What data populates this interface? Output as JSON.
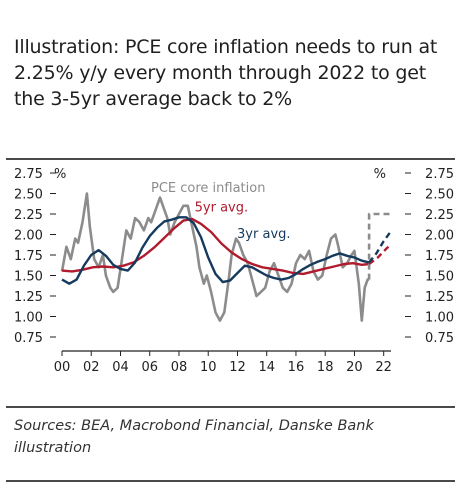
{
  "title": "Illustration: PCE core inflation needs to run at 2.25% y/y every month through 2022 to get the 3-5yr average back to 2%",
  "source": "Sources: BEA, Macrobond Financial, Danske Bank illustration",
  "chart_data": {
    "type": "line",
    "title": "",
    "xlabel": "",
    "ylabel_left": "%",
    "ylabel_right": "%",
    "ylim": [
      0.75,
      2.75
    ],
    "y_ticks": [
      0.75,
      1.0,
      1.25,
      1.5,
      1.75,
      2.0,
      2.25,
      2.5,
      2.75
    ],
    "y_tick_labels": [
      "0.75",
      "1.00",
      "1.25",
      "1.50",
      "1.75",
      "2.00",
      "2.25",
      "2.50",
      "2.75"
    ],
    "xlim": [
      2000,
      2022.5
    ],
    "x_ticks": [
      2000,
      2002,
      2004,
      2006,
      2008,
      2010,
      2012,
      2014,
      2016,
      2018,
      2020,
      2022
    ],
    "x_tick_labels": [
      "00",
      "02",
      "04",
      "06",
      "08",
      "10",
      "12",
      "14",
      "16",
      "18",
      "20",
      "22"
    ],
    "grid": false,
    "legend": "inline labels",
    "colors": {
      "pce": "#8c8c8c",
      "avg5": "#b01c2e",
      "avg3": "#153a5e"
    },
    "series": [
      {
        "name": "PCE core inflation",
        "style": "solid",
        "points": [
          [
            2000.0,
            1.55
          ],
          [
            2000.3,
            1.85
          ],
          [
            2000.6,
            1.7
          ],
          [
            2000.9,
            1.95
          ],
          [
            2001.1,
            1.9
          ],
          [
            2001.4,
            2.15
          ],
          [
            2001.7,
            2.5
          ],
          [
            2001.9,
            2.1
          ],
          [
            2002.2,
            1.7
          ],
          [
            2002.5,
            1.6
          ],
          [
            2002.8,
            1.75
          ],
          [
            2003.0,
            1.5
          ],
          [
            2003.3,
            1.35
          ],
          [
            2003.5,
            1.3
          ],
          [
            2003.8,
            1.35
          ],
          [
            2004.1,
            1.7
          ],
          [
            2004.4,
            2.05
          ],
          [
            2004.7,
            1.95
          ],
          [
            2005.0,
            2.2
          ],
          [
            2005.3,
            2.15
          ],
          [
            2005.6,
            2.05
          ],
          [
            2005.9,
            2.2
          ],
          [
            2006.1,
            2.15
          ],
          [
            2006.4,
            2.3
          ],
          [
            2006.7,
            2.45
          ],
          [
            2006.9,
            2.35
          ],
          [
            2007.2,
            2.2
          ],
          [
            2007.4,
            2.0
          ],
          [
            2007.7,
            2.15
          ],
          [
            2008.0,
            2.25
          ],
          [
            2008.3,
            2.35
          ],
          [
            2008.6,
            2.35
          ],
          [
            2008.9,
            2.1
          ],
          [
            2009.2,
            1.85
          ],
          [
            2009.4,
            1.6
          ],
          [
            2009.7,
            1.4
          ],
          [
            2009.9,
            1.5
          ],
          [
            2010.2,
            1.3
          ],
          [
            2010.5,
            1.05
          ],
          [
            2010.8,
            0.95
          ],
          [
            2011.1,
            1.05
          ],
          [
            2011.4,
            1.45
          ],
          [
            2011.6,
            1.75
          ],
          [
            2011.9,
            1.95
          ],
          [
            2012.1,
            1.9
          ],
          [
            2012.4,
            1.75
          ],
          [
            2012.7,
            1.65
          ],
          [
            2013.0,
            1.45
          ],
          [
            2013.3,
            1.25
          ],
          [
            2013.6,
            1.3
          ],
          [
            2013.9,
            1.35
          ],
          [
            2014.2,
            1.55
          ],
          [
            2014.5,
            1.65
          ],
          [
            2014.8,
            1.5
          ],
          [
            2015.1,
            1.35
          ],
          [
            2015.4,
            1.3
          ],
          [
            2015.7,
            1.4
          ],
          [
            2016.0,
            1.65
          ],
          [
            2016.3,
            1.75
          ],
          [
            2016.6,
            1.7
          ],
          [
            2016.9,
            1.8
          ],
          [
            2017.2,
            1.55
          ],
          [
            2017.5,
            1.45
          ],
          [
            2017.8,
            1.5
          ],
          [
            2018.1,
            1.75
          ],
          [
            2018.4,
            1.95
          ],
          [
            2018.7,
            2.0
          ],
          [
            2018.9,
            1.85
          ],
          [
            2019.2,
            1.6
          ],
          [
            2019.5,
            1.65
          ],
          [
            2019.8,
            1.75
          ],
          [
            2020.0,
            1.8
          ],
          [
            2020.3,
            1.4
          ],
          [
            2020.5,
            0.95
          ],
          [
            2020.7,
            1.35
          ],
          [
            2020.9,
            1.45
          ],
          [
            2021.0,
            1.45
          ]
        ]
      },
      {
        "name": "5yr avg.",
        "style": "solid",
        "points": [
          [
            2000.0,
            1.56
          ],
          [
            2000.7,
            1.55
          ],
          [
            2001.4,
            1.57
          ],
          [
            2002.1,
            1.6
          ],
          [
            2002.8,
            1.61
          ],
          [
            2003.5,
            1.6
          ],
          [
            2004.2,
            1.62
          ],
          [
            2004.9,
            1.66
          ],
          [
            2005.6,
            1.74
          ],
          [
            2006.3,
            1.84
          ],
          [
            2007.0,
            1.96
          ],
          [
            2007.7,
            2.08
          ],
          [
            2008.3,
            2.17
          ],
          [
            2008.9,
            2.19
          ],
          [
            2009.5,
            2.13
          ],
          [
            2010.2,
            2.03
          ],
          [
            2010.9,
            1.89
          ],
          [
            2011.6,
            1.78
          ],
          [
            2012.3,
            1.7
          ],
          [
            2013.0,
            1.64
          ],
          [
            2013.7,
            1.6
          ],
          [
            2014.4,
            1.58
          ],
          [
            2015.1,
            1.56
          ],
          [
            2015.8,
            1.53
          ],
          [
            2016.5,
            1.52
          ],
          [
            2017.2,
            1.55
          ],
          [
            2017.9,
            1.58
          ],
          [
            2018.6,
            1.61
          ],
          [
            2019.3,
            1.64
          ],
          [
            2019.9,
            1.65
          ],
          [
            2020.5,
            1.63
          ],
          [
            2021.0,
            1.64
          ]
        ]
      },
      {
        "name": "3yr avg.",
        "style": "solid",
        "points": [
          [
            2000.0,
            1.45
          ],
          [
            2000.5,
            1.4
          ],
          [
            2001.0,
            1.45
          ],
          [
            2001.5,
            1.62
          ],
          [
            2002.0,
            1.75
          ],
          [
            2002.5,
            1.81
          ],
          [
            2003.0,
            1.74
          ],
          [
            2003.5,
            1.63
          ],
          [
            2004.0,
            1.58
          ],
          [
            2004.5,
            1.56
          ],
          [
            2005.0,
            1.66
          ],
          [
            2005.5,
            1.84
          ],
          [
            2006.0,
            1.98
          ],
          [
            2006.5,
            2.08
          ],
          [
            2007.0,
            2.16
          ],
          [
            2007.5,
            2.18
          ],
          [
            2008.0,
            2.21
          ],
          [
            2008.5,
            2.21
          ],
          [
            2009.0,
            2.14
          ],
          [
            2009.5,
            1.97
          ],
          [
            2010.0,
            1.72
          ],
          [
            2010.5,
            1.52
          ],
          [
            2011.0,
            1.42
          ],
          [
            2011.5,
            1.44
          ],
          [
            2012.0,
            1.53
          ],
          [
            2012.5,
            1.62
          ],
          [
            2013.0,
            1.6
          ],
          [
            2013.5,
            1.55
          ],
          [
            2014.0,
            1.5
          ],
          [
            2014.5,
            1.47
          ],
          [
            2015.0,
            1.45
          ],
          [
            2015.5,
            1.47
          ],
          [
            2016.0,
            1.52
          ],
          [
            2016.5,
            1.58
          ],
          [
            2017.0,
            1.63
          ],
          [
            2017.5,
            1.67
          ],
          [
            2018.0,
            1.7
          ],
          [
            2018.5,
            1.74
          ],
          [
            2019.0,
            1.77
          ],
          [
            2019.5,
            1.74
          ],
          [
            2020.0,
            1.72
          ],
          [
            2020.5,
            1.68
          ],
          [
            2021.0,
            1.66
          ]
        ]
      },
      {
        "name": "PCE core inflation",
        "style": "dashed",
        "points": [
          [
            2021.0,
            1.45
          ],
          [
            2021.0,
            2.25
          ],
          [
            2021.5,
            2.25
          ],
          [
            2022.5,
            2.25
          ]
        ]
      },
      {
        "name": "5yr avg.",
        "style": "dashed",
        "points": [
          [
            2021.0,
            1.64
          ],
          [
            2021.6,
            1.72
          ],
          [
            2022.2,
            1.83
          ],
          [
            2022.5,
            1.88
          ]
        ]
      },
      {
        "name": "3yr avg.",
        "style": "dashed",
        "points": [
          [
            2021.0,
            1.66
          ],
          [
            2021.5,
            1.77
          ],
          [
            2022.0,
            1.92
          ],
          [
            2022.5,
            2.04
          ]
        ]
      }
    ],
    "annotations": [
      {
        "text": "PCE core inflation",
        "series": "pce",
        "x": 2010.0,
        "y": 2.52
      },
      {
        "text": "5yr avg.",
        "series": "avg5",
        "x": 2010.9,
        "y": 2.28
      },
      {
        "text": "3yr avg.",
        "series": "avg3",
        "x": 2013.8,
        "y": 1.96
      }
    ]
  }
}
